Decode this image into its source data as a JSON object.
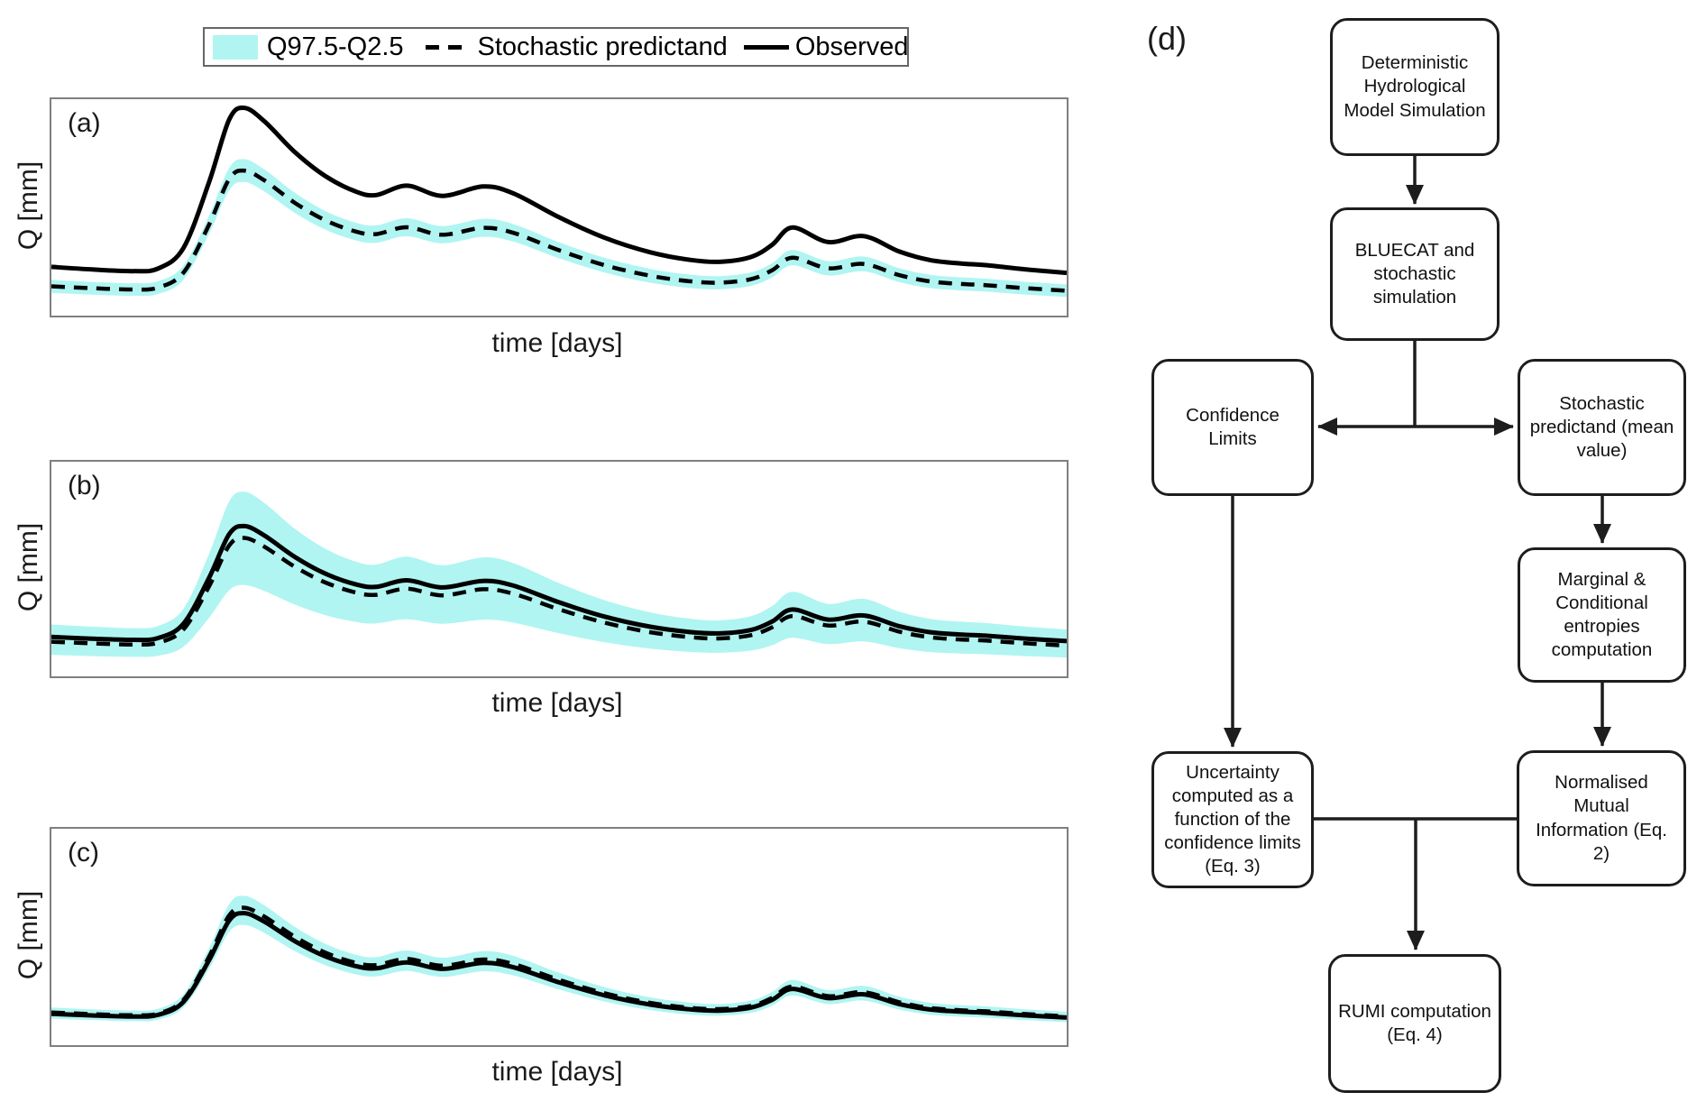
{
  "colors": {
    "band": "#B0F5F2",
    "line": "#000000",
    "plot_frame": "#7f7f7f",
    "diagram_ink": "#1d1d1d"
  },
  "legend": {
    "items": [
      {
        "label": "Q97.5-Q2.5",
        "symbol": "band-swatch"
      },
      {
        "label": "Stochastic predictand",
        "symbol": "dashed-line"
      },
      {
        "label": "Observed",
        "symbol": "solid-line"
      }
    ]
  },
  "chart_data": {
    "type": "line",
    "note": "Three stacked hydrograph panels sharing one flow-event shape; axes have no ticks or numeric labels, values are normalized fractions of panel height (0=bottom, 1=top).",
    "xlabel": "time [days]",
    "ylabel": "Q [mm]",
    "legend_position": "top-left",
    "grid": false,
    "x": [
      0.0,
      0.04,
      0.08,
      0.105,
      0.13,
      0.155,
      0.175,
      0.19,
      0.21,
      0.24,
      0.27,
      0.3,
      0.32,
      0.35,
      0.385,
      0.425,
      0.455,
      0.5,
      0.545,
      0.59,
      0.63,
      0.66,
      0.69,
      0.71,
      0.73,
      0.765,
      0.8,
      0.835,
      0.865,
      0.895,
      0.92,
      0.96,
      1.0
    ],
    "shape_v": [
      0.07,
      0.055,
      0.045,
      0.06,
      0.18,
      0.56,
      0.93,
      1.0,
      0.92,
      0.74,
      0.6,
      0.51,
      0.49,
      0.545,
      0.485,
      0.54,
      0.5,
      0.36,
      0.24,
      0.155,
      0.11,
      0.1,
      0.13,
      0.2,
      0.3,
      0.215,
      0.25,
      0.16,
      0.11,
      0.09,
      0.08,
      0.055,
      0.035
    ],
    "panels": [
      {
        "label": "(a)",
        "series": [
          {
            "name": "Q97.5-Q2.5",
            "role": "band",
            "base": 0.095,
            "amp": 0.575,
            "up0": 0.028,
            "up1": 0.025,
            "lo0": 0.028,
            "lo1": 0.025,
            "color": "#B0F5F2"
          },
          {
            "name": "Stochastic predictand",
            "role": "line",
            "dash": true,
            "base": 0.095,
            "amp": 0.575,
            "width": 4.5,
            "color": "#000000"
          },
          {
            "name": "Observed",
            "role": "line",
            "dash": false,
            "base": 0.17,
            "amp": 0.79,
            "width": 5,
            "color": "#000000"
          }
        ]
      },
      {
        "label": "(b)",
        "series": [
          {
            "name": "Q97.5-Q2.5",
            "role": "band",
            "base": 0.145,
            "amp": 0.555,
            "up0": 0.05,
            "up1": 0.11,
            "lo0": 0.07,
            "lo1": 0.205,
            "color": "#B0F5F2"
          },
          {
            "name": "Stochastic predictand",
            "role": "line",
            "dash": true,
            "base": 0.125,
            "amp": 0.52,
            "width": 4.5,
            "color": "#000000"
          },
          {
            "name": "Observed",
            "role": "line",
            "dash": false,
            "base": 0.145,
            "amp": 0.555,
            "width": 5,
            "color": "#000000"
          }
        ]
      },
      {
        "label": "(c)",
        "series": [
          {
            "name": "Q97.5-Q2.5",
            "role": "band",
            "base": 0.11,
            "amp": 0.5,
            "up0": 0.025,
            "up1": 0.055,
            "lo0": 0.02,
            "lo1": 0.035,
            "color": "#B0F5F2"
          },
          {
            "name": "Observed",
            "role": "line",
            "dash": false,
            "base": 0.11,
            "amp": 0.5,
            "width": 5,
            "color": "#000000"
          },
          {
            "name": "Stochastic predictand",
            "role": "line",
            "dash": true,
            "base": 0.115,
            "amp": 0.52,
            "width": 4.5,
            "color": "#000000"
          }
        ]
      }
    ]
  },
  "flowchart": {
    "label": "(d)",
    "nodes": [
      {
        "id": "deterministic",
        "label": "Deterministic Hydrological Model Simulation"
      },
      {
        "id": "bluecat",
        "label": "BLUECAT and stochastic simulation"
      },
      {
        "id": "confidence",
        "label": "Confidence Limits"
      },
      {
        "id": "stochastic-predictand",
        "label": "Stochastic predictand (mean value)"
      },
      {
        "id": "entropies",
        "label": "Marginal & Conditional entropies computation"
      },
      {
        "id": "uncertainty",
        "label": "Uncertainty computed as a function of the confidence limits (Eq. 3)"
      },
      {
        "id": "nmi",
        "label": "Normalised Mutual Information (Eq. 2)"
      },
      {
        "id": "rumi",
        "label": "RUMI computation (Eq. 4)"
      }
    ],
    "edges": [
      {
        "from": "deterministic",
        "to": "bluecat"
      },
      {
        "from": "bluecat",
        "to": "confidence"
      },
      {
        "from": "bluecat",
        "to": "stochastic-predictand"
      },
      {
        "from": "stochastic-predictand",
        "to": "entropies"
      },
      {
        "from": "entropies",
        "to": "nmi"
      },
      {
        "from": "confidence",
        "to": "uncertainty"
      },
      {
        "from": "uncertainty",
        "to": "rumi"
      },
      {
        "from": "nmi",
        "to": "rumi"
      }
    ]
  }
}
